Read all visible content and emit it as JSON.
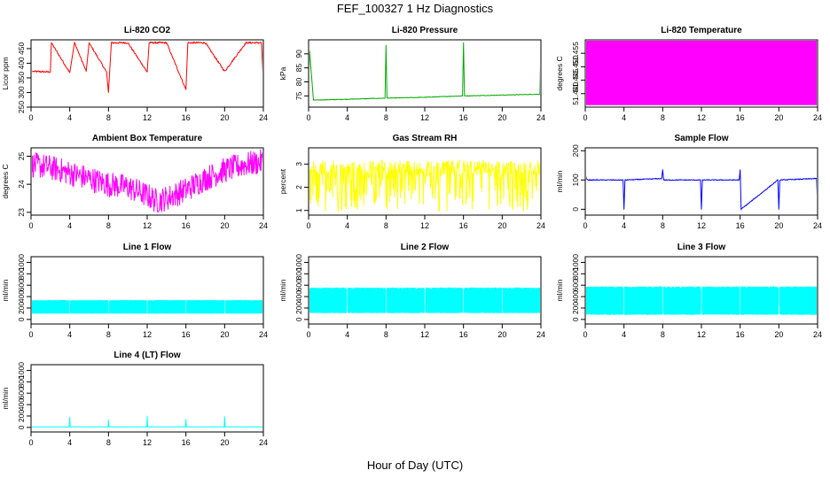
{
  "figure": {
    "title": "FEF_100327  1 Hz Diagnostics",
    "xlabel": "Hour of Day (UTC)",
    "background": "#ffffff"
  },
  "chart_data": [
    {
      "type": "line",
      "title": "Li-820 CO2",
      "ylabel": "Licor ppm",
      "color": "#ff0000",
      "xlim": [
        0,
        24
      ],
      "xticks": [
        0,
        4,
        8,
        12,
        16,
        20,
        24
      ],
      "ylim": [
        250,
        480
      ],
      "yticks": [
        250,
        300,
        350,
        400,
        450
      ],
      "baseline": 370,
      "series": [
        {
          "x": [
            0,
            0.3,
            2,
            2.1,
            4,
            4.5,
            5.7,
            6,
            7.8,
            8,
            8.3,
            10,
            12,
            12.2,
            14,
            16,
            16.2,
            18,
            20,
            22.2,
            23.8,
            24
          ],
          "values": [
            370,
            372,
            370,
            470,
            368,
            470,
            372,
            470,
            370,
            300,
            470,
            470,
            370,
            470,
            470,
            310,
            470,
            470,
            372,
            470,
            470,
            335
          ]
        }
      ]
    },
    {
      "type": "line",
      "title": "Li-820 Pressure",
      "ylabel": "kPa",
      "color": "#00aa00",
      "xlim": [
        0,
        24
      ],
      "xticks": [
        0,
        4,
        8,
        12,
        16,
        20,
        24
      ],
      "ylim": [
        71,
        95
      ],
      "yticks": [
        75,
        80,
        85,
        90
      ],
      "series": [
        {
          "x": [
            0,
            0.1,
            0.5,
            4,
            7.9,
            8,
            8.1,
            12,
            15.9,
            16,
            16.1,
            20,
            23.9,
            24
          ],
          "values": [
            76,
            91,
            73.5,
            73.8,
            74.2,
            93,
            74.2,
            74.5,
            75,
            94,
            75,
            75.3,
            75.6,
            95
          ]
        }
      ]
    },
    {
      "type": "area",
      "title": "Li-820 Temperature",
      "ylabel": "degrees C",
      "color": "#ff00ff",
      "xlim": [
        0,
        24
      ],
      "xticks": [
        0,
        4,
        8,
        12,
        16,
        20,
        24
      ],
      "ylim": [
        51.435,
        51.46
      ],
      "yticks": [
        51.44,
        51.445,
        51.45,
        51.455
      ],
      "series": [
        {
          "x": [
            0,
            24
          ],
          "values": [
            51.46,
            51.46
          ]
        }
      ]
    },
    {
      "type": "line",
      "title": "Ambient Box Temperature",
      "ylabel": "degrees C",
      "color": "#ff00ff",
      "xlim": [
        0,
        24
      ],
      "xticks": [
        0,
        4,
        8,
        12,
        16,
        20,
        24
      ],
      "ylim": [
        22.9,
        25.3
      ],
      "yticks": [
        23.0,
        24.0,
        25.0
      ],
      "series": [
        {
          "x": [
            0,
            2,
            4,
            6,
            8,
            10,
            12,
            13,
            14,
            16,
            18,
            20,
            22,
            24
          ],
          "values": [
            24.7,
            24.6,
            24.4,
            24.2,
            24.0,
            23.9,
            23.6,
            23.4,
            23.5,
            23.8,
            24.2,
            24.5,
            24.7,
            24.8
          ]
        }
      ]
    },
    {
      "type": "line",
      "title": "Gas Stream RH",
      "ylabel": "percent",
      "color": "#ffff00",
      "xlim": [
        0,
        24
      ],
      "xticks": [
        0,
        4,
        8,
        12,
        16,
        20,
        24
      ],
      "ylim": [
        0.8,
        3.7
      ],
      "yticks": [
        1.0,
        2.0,
        3.0
      ],
      "series": [
        {
          "x": [
            0,
            4,
            8,
            12,
            16,
            20,
            24
          ],
          "values": [
            3.2,
            3.1,
            3.2,
            3.1,
            3.2,
            3.1,
            3.2
          ]
        }
      ]
    },
    {
      "type": "line",
      "title": "Sample Flow",
      "ylabel": "ml/min",
      "color": "#0000ff",
      "xlim": [
        0,
        24
      ],
      "xticks": [
        0,
        4,
        8,
        12,
        16,
        20,
        24
      ],
      "ylim": [
        -20,
        210
      ],
      "yticks": [
        0,
        100,
        200
      ],
      "series": [
        {
          "x": [
            0,
            0.1,
            0.3,
            3.9,
            4,
            4.1,
            7.9,
            8,
            8.1,
            11.9,
            12,
            12.1,
            15.9,
            16,
            16.1,
            19.9,
            20,
            20.1,
            23.9,
            24
          ],
          "values": [
            125,
            105,
            100,
            100,
            0,
            100,
            105,
            135,
            100,
            100,
            0,
            100,
            100,
            135,
            0,
            100,
            0,
            100,
            105,
            0
          ]
        }
      ]
    },
    {
      "type": "area",
      "title": "Line 1 Flow",
      "ylabel": "ml/min",
      "color": "#00ffff",
      "xlim": [
        0,
        24
      ],
      "xticks": [
        0,
        4,
        8,
        12,
        16,
        20,
        24
      ],
      "ylim": [
        -80,
        1100
      ],
      "yticks": [
        0,
        200,
        400,
        600,
        800,
        1000
      ],
      "gaps": [
        4,
        8,
        12,
        16,
        20
      ],
      "series": [
        {
          "name": "high",
          "x": [
            0,
            24
          ],
          "values": [
            340,
            340
          ]
        },
        {
          "name": "low",
          "x": [
            0,
            24
          ],
          "values": [
            100,
            100
          ]
        }
      ]
    },
    {
      "type": "area",
      "title": "Line 2 Flow",
      "ylabel": "ml/min",
      "color": "#00ffff",
      "xlim": [
        0,
        24
      ],
      "xticks": [
        0,
        4,
        8,
        12,
        16,
        20,
        24
      ],
      "ylim": [
        -80,
        1100
      ],
      "yticks": [
        0,
        200,
        400,
        600,
        800,
        1000
      ],
      "gaps": [
        4,
        8,
        12,
        16,
        20
      ],
      "series": [
        {
          "name": "high",
          "x": [
            0,
            24
          ],
          "values": [
            560,
            560
          ]
        },
        {
          "name": "low",
          "x": [
            0,
            24
          ],
          "values": [
            110,
            110
          ]
        }
      ]
    },
    {
      "type": "area",
      "title": "Line 3 Flow",
      "ylabel": "ml/min",
      "color": "#00ffff",
      "xlim": [
        0,
        24
      ],
      "xticks": [
        0,
        4,
        8,
        12,
        16,
        20,
        24
      ],
      "ylim": [
        -80,
        1100
      ],
      "yticks": [
        0,
        200,
        400,
        600,
        800,
        1000
      ],
      "gaps": [
        4,
        8,
        12,
        16,
        20
      ],
      "series": [
        {
          "name": "high",
          "x": [
            0,
            24
          ],
          "values": [
            580,
            580
          ]
        },
        {
          "name": "low",
          "x": [
            0,
            24
          ],
          "values": [
            80,
            80
          ]
        }
      ]
    },
    {
      "type": "line",
      "title": "Line 4 (LT) Flow",
      "ylabel": "ml/min",
      "color": "#00ffff",
      "xlim": [
        0,
        24
      ],
      "xticks": [
        0,
        4,
        8,
        12,
        16,
        20,
        24
      ],
      "ylim": [
        -80,
        1100
      ],
      "yticks": [
        0,
        200,
        400,
        600,
        800,
        1000
      ],
      "series": [
        {
          "x": [
            0,
            3.95,
            4,
            4.05,
            7.95,
            8,
            8.05,
            11.95,
            12,
            12.05,
            15.95,
            16,
            16.05,
            19.95,
            20,
            20.05,
            23.95,
            24
          ],
          "values": [
            10,
            10,
            180,
            10,
            10,
            130,
            10,
            10,
            200,
            10,
            10,
            140,
            10,
            10,
            190,
            10,
            10,
            150
          ]
        }
      ]
    }
  ]
}
